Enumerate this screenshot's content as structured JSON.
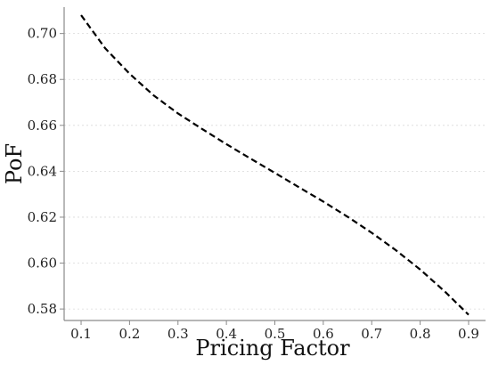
{
  "chart_data": {
    "type": "line",
    "title": "",
    "xlabel": "Pricing Factor",
    "ylabel": "PoF",
    "xlim": [
      0.065,
      0.935
    ],
    "ylim": [
      0.575,
      0.7115
    ],
    "x_ticks": [
      0.1,
      0.2,
      0.3,
      0.4,
      0.5,
      0.6,
      0.7,
      0.8,
      0.9
    ],
    "x_tick_labels": [
      "0.1",
      "0.2",
      "0.3",
      "0.4",
      "0.5",
      "0.6",
      "0.7",
      "0.8",
      "0.9"
    ],
    "y_ticks": [
      0.58,
      0.6,
      0.62,
      0.64,
      0.66,
      0.68,
      0.7
    ],
    "y_tick_labels": [
      "0.58",
      "0.60",
      "0.62",
      "0.64",
      "0.66",
      "0.68",
      "0.70"
    ],
    "grid": "horizontal dotted",
    "series": [
      {
        "color": "#000000",
        "line_style": "dashed",
        "x": [
          0.1,
          0.15,
          0.2,
          0.25,
          0.3,
          0.35,
          0.4,
          0.45,
          0.5,
          0.55,
          0.6,
          0.65,
          0.7,
          0.75,
          0.8,
          0.85,
          0.9
        ],
        "y": [
          0.708,
          0.6935,
          0.6825,
          0.673,
          0.6652,
          0.6584,
          0.6518,
          0.6455,
          0.6393,
          0.633,
          0.6268,
          0.6202,
          0.6132,
          0.6056,
          0.5972,
          0.5878,
          0.5775
        ]
      }
    ]
  }
}
